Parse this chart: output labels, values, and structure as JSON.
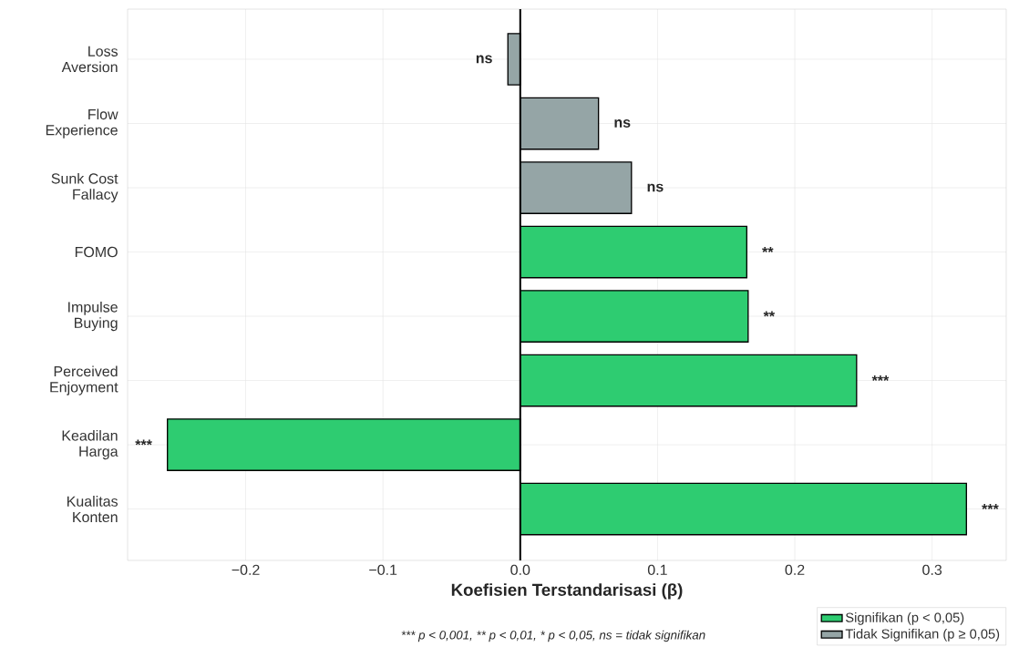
{
  "chart_data": {
    "type": "bar",
    "orientation": "horizontal",
    "categories": [
      "Loss\nAversion",
      "Flow\nExperience",
      "Sunk Cost\nFallacy",
      "FOMO",
      "Impulse\nBuying",
      "Perceived\nEnjoyment",
      "Keadilan\nHarga",
      "Kualitas\nKonten"
    ],
    "series": [
      {
        "name": "Signifikan (p < 0,05)",
        "color": "#2ecc71",
        "values": [
          null,
          null,
          null,
          0.165,
          0.166,
          0.245,
          -0.257,
          0.325
        ],
        "value_labels": [
          null,
          null,
          null,
          "**",
          "**",
          "***",
          "***",
          "***"
        ]
      },
      {
        "name": "Tidak Signifikan (p ≥ 0,05)",
        "color": "#95a5a6",
        "values": [
          -0.009,
          0.057,
          0.081,
          null,
          null,
          null,
          null,
          null
        ],
        "value_labels": [
          "ns",
          "ns",
          "ns",
          null,
          null,
          null,
          null,
          null
        ]
      }
    ],
    "xlabel": "Koefisien Terstandarisasi (β)",
    "xlim": [
      -0.286,
      0.354
    ],
    "xticks": [
      {
        "value": -0.2,
        "label": "−0.2"
      },
      {
        "value": -0.1,
        "label": "−0.1"
      },
      {
        "value": 0.0,
        "label": "0.0"
      },
      0.1,
      0.2,
      0.3
    ],
    "ref_lines": [
      {
        "axis": "x",
        "value": 0,
        "color": "#000000"
      }
    ],
    "grid": true,
    "legend": "bottom right",
    "annotations": [
      "*** p < 0,001, ** p < 0,01, * p < 0,05, ns = tidak signifikan"
    ]
  }
}
